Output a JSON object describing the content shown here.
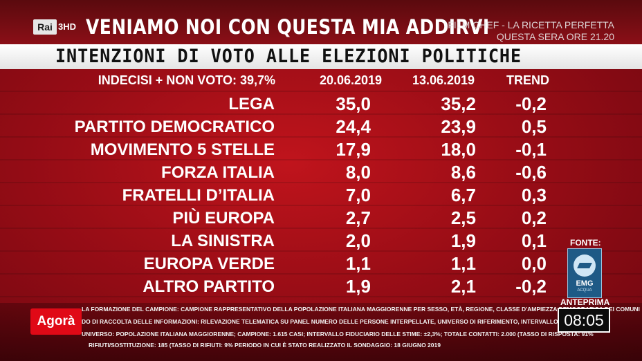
{
  "channel": {
    "logo_text": "Rai",
    "channel_number": "3HD",
    "headline": "VENIAMO NOI CON QUESTA MIA ADDIRVI",
    "promo_line1": "FILM CHEF - LA RICETTA PERFETTA",
    "promo_line2": "QUESTA SERA ORE 21.20"
  },
  "poll": {
    "title": "INTENZIONI DI VOTO ALLE ELEZIONI POLITICHE",
    "undecided_label": "INDECISI + NON VOTO: 39,7%",
    "columns": [
      "20.06.2019",
      "13.06.2019",
      "TREND"
    ],
    "rows": [
      {
        "party": "LEGA",
        "current": "35,0",
        "previous": "35,2",
        "trend": "-0,2"
      },
      {
        "party": "PARTITO DEMOCRATICO",
        "current": "24,4",
        "previous": "23,9",
        "trend": "0,5"
      },
      {
        "party": "MOVIMENTO 5 STELLE",
        "current": "17,9",
        "previous": "18,0",
        "trend": "-0,1"
      },
      {
        "party": "FORZA ITALIA",
        "current": "8,0",
        "previous": "8,6",
        "trend": "-0,6"
      },
      {
        "party": "FRATELLI D’ITALIA",
        "current": "7,0",
        "previous": "6,7",
        "trend": "0,3"
      },
      {
        "party": "PIÙ EUROPA",
        "current": "2,7",
        "previous": "2,5",
        "trend": "0,2"
      },
      {
        "party": "LA SINISTRA",
        "current": "2,0",
        "previous": "1,9",
        "trend": "0,1"
      },
      {
        "party": "EUROPA VERDE",
        "current": "1,1",
        "previous": "1,1",
        "trend": "0,0"
      },
      {
        "party": "ALTRO PARTITO",
        "current": "1,9",
        "previous": "2,1",
        "trend": "-0,2"
      }
    ]
  },
  "source": {
    "label": "FONTE:",
    "logo_text": "EMG",
    "logo_sub": "ACQUA"
  },
  "footnotes": [
    "LA FORMAZIONE DEL CAMPIONE: CAMPIONE RAPPRESENTATIVO DELLA POPOLAZIONE ITALIANA MAGGIORENNE PER SESSO, ETÀ, REGIONE, CLASSE D'AMPIEZZA DEMOGRAFICA DEI COMUNI",
    "DO DI RACCOLTA DELLE INFORMAZIONI: RILEVAZIONE TELEMATICA SU PANEL NUMERO DELLE PERSONE INTERPELLATE, UNIVERSO DI RIFERIMENTO, INTERVALLO FIDUCIARIO",
    "UNIVERSO: POPOLAZIONE ITALIANA MAGGIORENNE; CAMPIONE: 1.615 CASI; INTERVALLO FIDUCIARIO DELLE STIME: ±2,3%; TOTALE CONTATTI: 2.000 (TASSO DI RISPOSTA: 91%",
    "RIFIUTI/SOSTITUZIONE: 185 (TASSO DI RIFIUTI: 9% PERIODO IN CUI È STATO REALIZZATO IL SONDAGGIO: 18 GIUGNO 2019"
  ],
  "program": {
    "logo_text": "Agorà",
    "preview_label": "ANTEPRIMA",
    "clock": "08:05"
  }
}
